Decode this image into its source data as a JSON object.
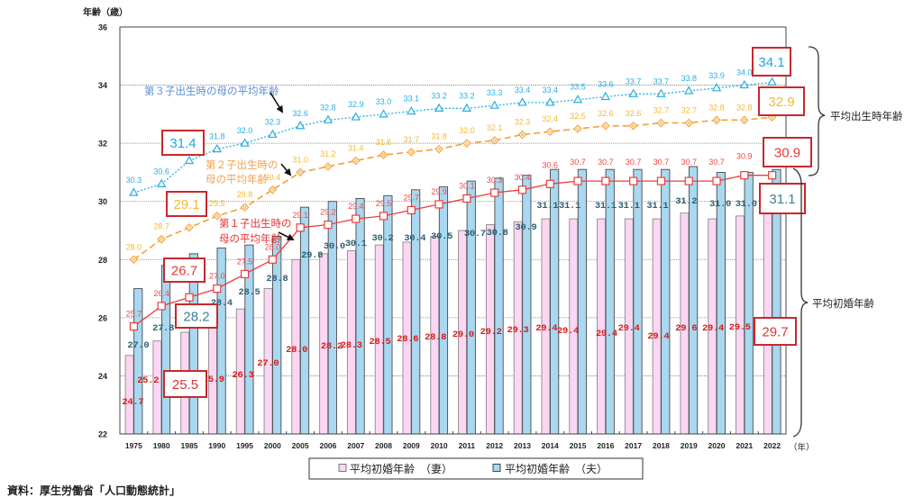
{
  "chart_data": {
    "type": "bar",
    "title": "",
    "ylabel": "年齢（歳）",
    "xlabel": "（年）",
    "ylim": [
      22,
      36
    ],
    "yticks": [
      22,
      24,
      26,
      28,
      30,
      32,
      34,
      36
    ],
    "grid": true,
    "categories": [
      "1975",
      "1980",
      "1985",
      "1990",
      "1995",
      "2000",
      "2005",
      "2006",
      "2007",
      "2008",
      "2009",
      "2010",
      "2011",
      "2012",
      "2013",
      "2014",
      "2015",
      "2016",
      "2017",
      "2018",
      "2019",
      "2020",
      "2021",
      "2022"
    ],
    "series": [
      {
        "id": "wife",
        "name": "平均初婚年齢　（妻）",
        "mark": "bar",
        "color": "#fcd6f2",
        "label_color": "#d81c1c",
        "highlight_color": "#d83838",
        "values": [
          24.7,
          25.2,
          25.5,
          25.9,
          26.3,
          27.0,
          28.0,
          28.2,
          28.3,
          28.5,
          28.6,
          28.8,
          29.0,
          29.2,
          29.3,
          29.4,
          29.4,
          29.4,
          29.4,
          29.4,
          29.6,
          29.4,
          29.5,
          29.7
        ]
      },
      {
        "id": "husband",
        "name": "平均初婚年齢　（夫）",
        "mark": "bar",
        "color": "#a9d8f0",
        "label_color": "#2e6070",
        "highlight_color": "#3d7f90",
        "values": [
          27.0,
          27.8,
          28.2,
          28.4,
          28.5,
          28.8,
          29.8,
          30.0,
          30.1,
          30.2,
          30.4,
          30.5,
          30.7,
          30.8,
          30.9,
          31.1,
          31.1,
          31.1,
          31.1,
          31.1,
          31.2,
          31.0,
          31.0,
          31.1
        ]
      },
      {
        "id": "first_child",
        "name": "第１子出生時の母の平均年齢",
        "mark": "line",
        "marker": "square",
        "line_style": "solid",
        "color": "#f03c3c",
        "label_color": "#f04848",
        "highlight_color": "#e83838",
        "values": [
          25.7,
          26.4,
          26.7,
          27.0,
          27.5,
          28.0,
          29.1,
          29.2,
          29.4,
          29.5,
          29.7,
          29.9,
          30.1,
          30.3,
          30.4,
          30.6,
          30.7,
          30.7,
          30.7,
          30.7,
          30.7,
          30.7,
          30.9,
          30.9
        ]
      },
      {
        "id": "second_child",
        "name": "第２子出生時の母の平均年齢",
        "mark": "line",
        "marker": "diamond",
        "line_style": "dashed",
        "color": "#f5a032",
        "label_color": "#f5b830",
        "highlight_color": "#f5b830",
        "values": [
          28.0,
          28.7,
          29.1,
          29.5,
          29.8,
          30.4,
          31.0,
          31.2,
          31.4,
          31.6,
          31.7,
          31.8,
          32.0,
          32.1,
          32.3,
          32.4,
          32.5,
          32.6,
          32.6,
          32.7,
          32.7,
          32.8,
          32.8,
          32.9
        ]
      },
      {
        "id": "third_child",
        "name": "第３子出生時の母の平均年齢",
        "mark": "line",
        "marker": "triangle",
        "line_style": "dotted",
        "color": "#2aaee0",
        "label_color": "#2aaee8",
        "highlight_color": "#1fa8e0",
        "values": [
          30.3,
          30.6,
          31.4,
          31.8,
          32.0,
          32.3,
          32.6,
          32.8,
          32.9,
          33.0,
          33.1,
          33.2,
          33.2,
          33.3,
          33.4,
          33.4,
          33.5,
          33.6,
          33.7,
          33.7,
          33.8,
          33.9,
          34.0,
          34.1
        ]
      }
    ],
    "highlighted_categories": [
      "1985",
      "2022"
    ],
    "highlight_box_color": "#c8282c",
    "annotations": [
      {
        "series": "third_child",
        "lines": [
          "第３子出生時の母の平均年齢"
        ],
        "color": "#5a8ed6"
      },
      {
        "series": "second_child",
        "lines": [
          "第２子出生時の",
          "母の平均年齢"
        ],
        "color": "#f5a050"
      },
      {
        "series": "first_child",
        "lines": [
          "第１子出生時の",
          "母の平均年齢"
        ],
        "color": "#ee3030"
      }
    ],
    "brackets": [
      {
        "label": "平均出生時年齢",
        "covers": [
          "first_child",
          "second_child",
          "third_child"
        ]
      },
      {
        "label": "平均初婚年齢",
        "covers": [
          "wife",
          "husband"
        ]
      }
    ],
    "legend": {
      "placement": "bottom"
    }
  },
  "source": "資料：厚生労働省「人口動態統計」"
}
